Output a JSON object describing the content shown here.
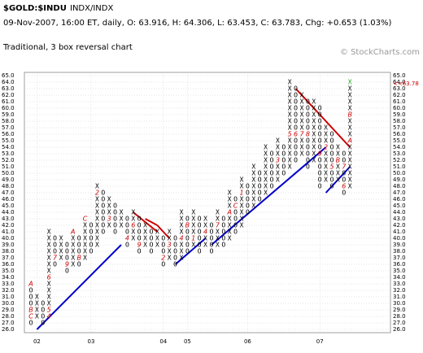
{
  "chart_data": {
    "type": "point-and-figure",
    "title": "$GOLD:$INDU",
    "exchange": "INDX/INDX",
    "subtitle": "09-Nov-2007, 16:00 ET, daily, O: 63.916, H: 64.306, L: 63.453, C: 63.783, Chg: +0.653 (1.03%)",
    "description": "Traditional, 3 box reversal chart",
    "watermark": "© StockCharts.com",
    "last_price": {
      "value": 63.78,
      "label": "<<63.78"
    },
    "ylim": [
      26,
      65
    ],
    "yticks": [
      {
        "value": 26,
        "label": "26.0"
      },
      {
        "value": 27,
        "label": "27.0"
      },
      {
        "value": 28,
        "label": "28.0"
      },
      {
        "value": 29,
        "label": "29.0"
      },
      {
        "value": 30,
        "label": "30.0"
      },
      {
        "value": 31,
        "label": "31.0"
      },
      {
        "value": 32,
        "label": "32.0"
      },
      {
        "value": 33,
        "label": "33.0"
      },
      {
        "value": 34,
        "label": "34.0"
      },
      {
        "value": 35,
        "label": "35.0"
      },
      {
        "value": 36,
        "label": "36.0"
      },
      {
        "value": 37,
        "label": "37.0"
      },
      {
        "value": 38,
        "label": "38.0"
      },
      {
        "value": 39,
        "label": "39.0"
      },
      {
        "value": 40,
        "label": "40.0"
      },
      {
        "value": 41,
        "label": "41.0"
      },
      {
        "value": 42,
        "label": "42.0"
      },
      {
        "value": 43,
        "label": "43.0"
      },
      {
        "value": 44,
        "label": "44.0"
      },
      {
        "value": 45,
        "label": "45.0"
      },
      {
        "value": 46,
        "label": "46.0"
      },
      {
        "value": 47,
        "label": "47.0"
      },
      {
        "value": 48,
        "label": "48.0"
      },
      {
        "value": 49,
        "label": "49.0"
      },
      {
        "value": 50,
        "label": "50.0"
      },
      {
        "value": 51,
        "label": "51.0"
      },
      {
        "value": 52,
        "label": "52.0"
      },
      {
        "value": 53,
        "label": "53.0"
      },
      {
        "value": 54,
        "label": "54.0"
      },
      {
        "value": 55,
        "label": "55.0"
      },
      {
        "value": 56,
        "label": "56.0"
      },
      {
        "value": 57,
        "label": "57.0"
      },
      {
        "value": 58,
        "label": "58.0"
      },
      {
        "value": 59,
        "label": "59.0"
      },
      {
        "value": 60,
        "label": "60.0"
      },
      {
        "value": 61,
        "label": "61.0"
      },
      {
        "value": 62,
        "label": "62.0"
      },
      {
        "value": 63,
        "label": "63.0"
      },
      {
        "value": 64,
        "label": "64.0"
      },
      {
        "value": 65,
        "label": "65.0"
      }
    ],
    "grid": true,
    "x_labels": [
      {
        "col": 1,
        "label": "02"
      },
      {
        "col": 10,
        "label": "03"
      },
      {
        "col": 22,
        "label": "04"
      },
      {
        "col": 26,
        "label": "05"
      },
      {
        "col": 36,
        "label": "06"
      },
      {
        "col": 48,
        "label": "07"
      }
    ],
    "x_color": "#000000",
    "o_color": "#000000",
    "last_box_color": "#22aa22",
    "marker_color": "#cc0000",
    "columns": [
      {
        "type": "O",
        "low": 27,
        "high": 33
      },
      {
        "type": "X",
        "low": 28,
        "high": 31
      },
      {
        "type": "O",
        "low": 27,
        "high": 30
      },
      {
        "type": "X",
        "low": 28,
        "high": 41
      },
      {
        "type": "O",
        "low": 36,
        "high": 40
      },
      {
        "type": "X",
        "low": 37,
        "high": 40
      },
      {
        "type": "O",
        "low": 35,
        "high": 39
      },
      {
        "type": "X",
        "low": 36,
        "high": 41
      },
      {
        "type": "O",
        "low": 36,
        "high": 40
      },
      {
        "type": "X",
        "low": 37,
        "high": 43
      },
      {
        "type": "O",
        "low": 38,
        "high": 42
      },
      {
        "type": "X",
        "low": 39,
        "high": 48
      },
      {
        "type": "O",
        "low": 41,
        "high": 47
      },
      {
        "type": "X",
        "low": 42,
        "high": 46
      },
      {
        "type": "O",
        "low": 41,
        "high": 45
      },
      {
        "type": "X",
        "low": 42,
        "high": 44
      },
      {
        "type": "O",
        "low": 39,
        "high": 43
      },
      {
        "type": "X",
        "low": 40,
        "high": 44
      },
      {
        "type": "O",
        "low": 38,
        "high": 43
      },
      {
        "type": "X",
        "low": 39,
        "high": 42
      },
      {
        "type": "O",
        "low": 38,
        "high": 41
      },
      {
        "type": "X",
        "low": 39,
        "high": 41
      },
      {
        "type": "O",
        "low": 36,
        "high": 40
      },
      {
        "type": "X",
        "low": 37,
        "high": 41
      },
      {
        "type": "O",
        "low": 36,
        "high": 40
      },
      {
        "type": "X",
        "low": 37,
        "high": 44
      },
      {
        "type": "O",
        "low": 38,
        "high": 43
      },
      {
        "type": "X",
        "low": 39,
        "high": 44
      },
      {
        "type": "O",
        "low": 38,
        "high": 43
      },
      {
        "type": "X",
        "low": 39,
        "high": 43
      },
      {
        "type": "O",
        "low": 38,
        "high": 42
      },
      {
        "type": "X",
        "low": 39,
        "high": 44
      },
      {
        "type": "O",
        "low": 39,
        "high": 43
      },
      {
        "type": "X",
        "low": 40,
        "high": 47
      },
      {
        "type": "O",
        "low": 41,
        "high": 46
      },
      {
        "type": "X",
        "low": 42,
        "high": 49
      },
      {
        "type": "O",
        "low": 44,
        "high": 48
      },
      {
        "type": "X",
        "low": 45,
        "high": 51
      },
      {
        "type": "O",
        "low": 46,
        "high": 50
      },
      {
        "type": "X",
        "low": 47,
        "high": 54
      },
      {
        "type": "O",
        "low": 48,
        "high": 53
      },
      {
        "type": "X",
        "low": 49,
        "high": 55
      },
      {
        "type": "O",
        "low": 50,
        "high": 54
      },
      {
        "type": "X",
        "low": 51,
        "high": 64
      },
      {
        "type": "O",
        "low": 52,
        "high": 63
      },
      {
        "type": "X",
        "low": 53,
        "high": 62
      },
      {
        "type": "O",
        "low": 51,
        "high": 61
      },
      {
        "type": "X",
        "low": 52,
        "high": 61
      },
      {
        "type": "O",
        "low": 48,
        "high": 60
      },
      {
        "type": "X",
        "low": 49,
        "high": 57
      },
      {
        "type": "O",
        "low": 48,
        "high": 56
      },
      {
        "type": "X",
        "low": 49,
        "high": 54
      },
      {
        "type": "O",
        "low": 47,
        "high": 53
      },
      {
        "type": "X",
        "low": 48,
        "high": 64
      }
    ],
    "markers": [
      {
        "col": 0,
        "value": 33,
        "label": "A"
      },
      {
        "col": 0,
        "value": 29,
        "label": "B"
      },
      {
        "col": 0,
        "value": 28,
        "label": "C"
      },
      {
        "col": 3,
        "value": 28,
        "label": "4"
      },
      {
        "col": 3,
        "value": 29,
        "label": "5"
      },
      {
        "col": 3,
        "value": 34,
        "label": "6"
      },
      {
        "col": 4,
        "value": 37,
        "label": "7"
      },
      {
        "col": 6,
        "value": 36,
        "label": "9"
      },
      {
        "col": 7,
        "value": 41,
        "label": "A"
      },
      {
        "col": 8,
        "value": 37,
        "label": "B"
      },
      {
        "col": 9,
        "value": 43,
        "label": "C"
      },
      {
        "col": 11,
        "value": 47,
        "label": "2"
      },
      {
        "col": 13,
        "value": 43,
        "label": "3"
      },
      {
        "col": 16,
        "value": 40,
        "label": "4"
      },
      {
        "col": 17,
        "value": 42,
        "label": "6"
      },
      {
        "col": 18,
        "value": 39,
        "label": "9"
      },
      {
        "col": 22,
        "value": 37,
        "label": "2"
      },
      {
        "col": 23,
        "value": 39,
        "label": "3"
      },
      {
        "col": 25,
        "value": 40,
        "label": "4"
      },
      {
        "col": 26,
        "value": 42,
        "label": "B"
      },
      {
        "col": 27,
        "value": 40,
        "label": "1"
      },
      {
        "col": 29,
        "value": 41,
        "label": "4"
      },
      {
        "col": 31,
        "value": 42,
        "label": "7"
      },
      {
        "col": 33,
        "value": 44,
        "label": "A"
      },
      {
        "col": 34,
        "value": 45,
        "label": "C"
      },
      {
        "col": 35,
        "value": 47,
        "label": "1"
      },
      {
        "col": 41,
        "value": 52,
        "label": "3"
      },
      {
        "col": 43,
        "value": 56,
        "label": "5"
      },
      {
        "col": 44,
        "value": 56,
        "label": "6"
      },
      {
        "col": 45,
        "value": 56,
        "label": "7"
      },
      {
        "col": 46,
        "value": 56,
        "label": "8"
      },
      {
        "col": 48,
        "value": 53,
        "label": "9"
      },
      {
        "col": 49,
        "value": 54,
        "label": "2"
      },
      {
        "col": 50,
        "value": 51,
        "label": "5"
      },
      {
        "col": 51,
        "value": 52,
        "label": "B"
      },
      {
        "col": 52,
        "value": 48,
        "label": "6"
      },
      {
        "col": 52,
        "value": 51,
        "label": "7"
      },
      {
        "col": 53,
        "value": 55,
        "label": "A"
      },
      {
        "col": 53,
        "value": 59,
        "label": "B"
      }
    ],
    "trendlines": [
      {
        "color": "#0000cc",
        "from": {
          "col": 1,
          "value": 26
        },
        "to": {
          "col": 15,
          "value": 39
        }
      },
      {
        "color": "#0000cc",
        "from": {
          "col": 24,
          "value": 36
        },
        "to": {
          "col": 29,
          "value": 40
        }
      },
      {
        "color": "#0000cc",
        "from": {
          "col": 30,
          "value": 39
        },
        "to": {
          "col": 49,
          "value": 54
        }
      },
      {
        "color": "#0000cc",
        "from": {
          "col": 49,
          "value": 47
        },
        "to": {
          "col": 53,
          "value": 51
        }
      },
      {
        "color": "#cc0000",
        "from": {
          "col": 17,
          "value": 44
        },
        "to": {
          "col": 21,
          "value": 41
        }
      },
      {
        "color": "#cc0000",
        "from": {
          "col": 19,
          "value": 43
        },
        "to": {
          "col": 21,
          "value": 42
        }
      },
      {
        "color": "#cc0000",
        "from": {
          "col": 21,
          "value": 42
        },
        "to": {
          "col": 23,
          "value": 40
        }
      },
      {
        "color": "#cc0000",
        "from": {
          "col": 44,
          "value": 63
        },
        "to": {
          "col": 53,
          "value": 54
        }
      }
    ]
  }
}
